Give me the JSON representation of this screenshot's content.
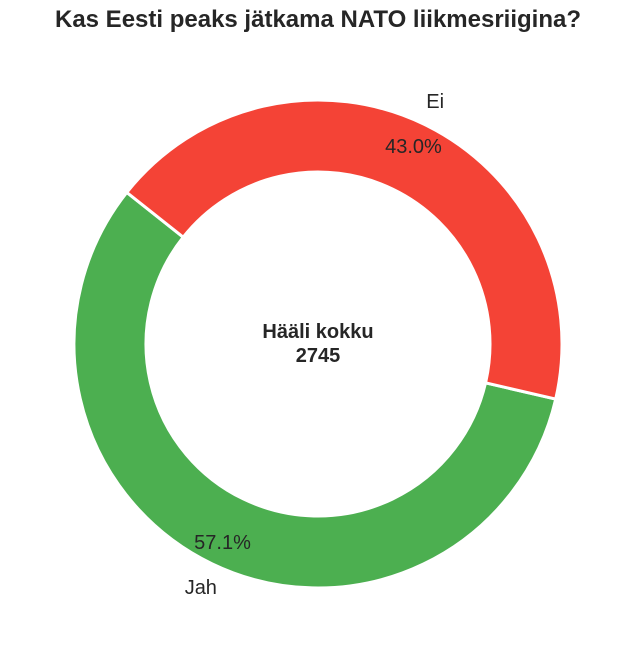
{
  "chart_data": {
    "type": "pie",
    "title": "Kas Eesti peaks jätkama NATO liikmesriigina?",
    "categories": [
      "Jah",
      "Ei"
    ],
    "values": [
      57.1,
      43.0
    ],
    "value_labels": [
      "57.1%",
      "43.0%"
    ],
    "colors": [
      "#4caf50",
      "#f44336"
    ],
    "center_label": "Hääli kokku",
    "center_value": "2745",
    "donut": true,
    "start_angle_deg": 141.6
  }
}
